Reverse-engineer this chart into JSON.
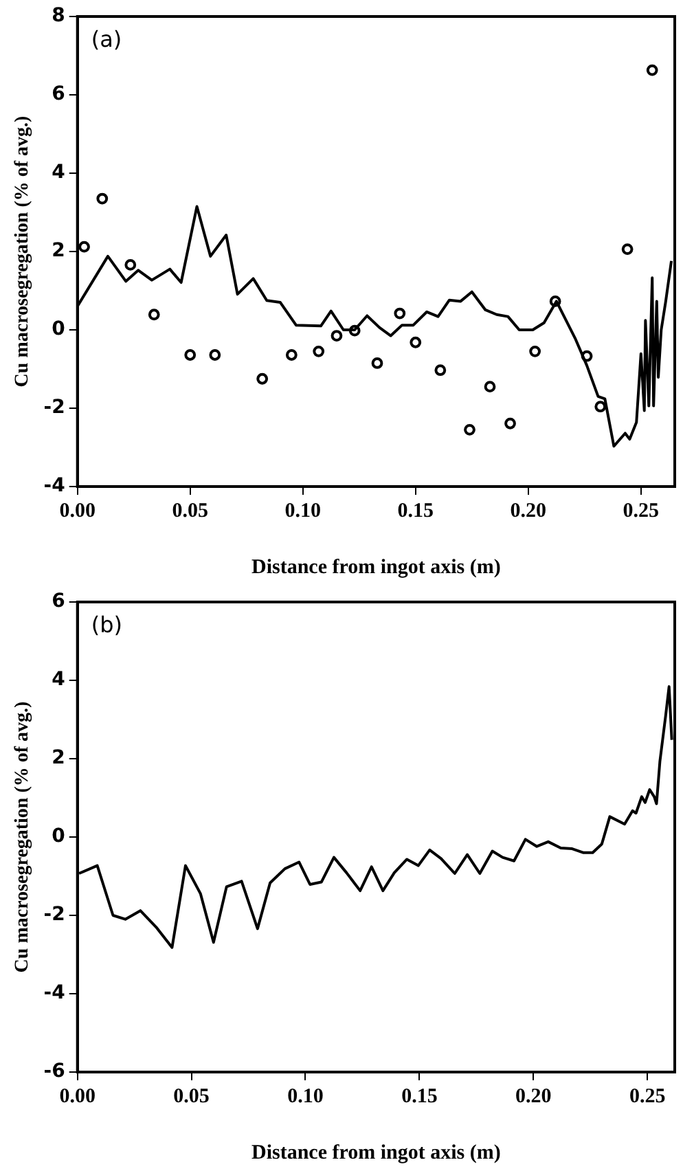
{
  "chart_data": [
    {
      "type": "line",
      "annotations": [
        "(a)"
      ],
      "xlabel": "Distance from ingot axis (m)",
      "ylabel": "Cu macrosegregation (% of avg.)",
      "grid": false,
      "legend": false,
      "xlim": [
        0,
        0.265
      ],
      "xticks": [
        {
          "value": 0,
          "label": "0.00"
        },
        0.05,
        {
          "value": 0.1,
          "label": "0.10"
        },
        0.15,
        {
          "value": 0.2,
          "label": "0.20"
        },
        0.25
      ],
      "ylim": [
        -4,
        8
      ],
      "yticks": [
        -4,
        -2,
        0,
        2,
        4,
        6,
        8
      ],
      "series": [
        {
          "color": "#000000",
          "marker": "none",
          "line_style": "solid",
          "x": [
            0.0,
            0.0135,
            0.0215,
            0.027,
            0.033,
            0.041,
            0.046,
            0.053,
            0.059,
            0.066,
            0.071,
            0.078,
            0.084,
            0.09,
            0.097,
            0.108,
            0.1125,
            0.118,
            0.123,
            0.1285,
            0.134,
            0.139,
            0.144,
            0.149,
            0.155,
            0.16,
            0.165,
            0.17,
            0.175,
            0.181,
            0.186,
            0.191,
            0.196,
            0.202,
            0.207,
            0.2125,
            0.221,
            0.226,
            0.231,
            0.234,
            0.238,
            0.243,
            0.245,
            0.248,
            0.25,
            0.2515,
            0.252,
            0.2535,
            0.255,
            0.2556,
            0.257,
            0.2577,
            0.259,
            0.261,
            0.2635
          ],
          "values": [
            0.6,
            1.88,
            1.24,
            1.52,
            1.27,
            1.55,
            1.21,
            3.15,
            1.88,
            2.42,
            0.91,
            1.31,
            0.75,
            0.7,
            0.12,
            0.1,
            0.48,
            0.0,
            0.0,
            0.36,
            0.06,
            -0.15,
            0.12,
            0.12,
            0.46,
            0.34,
            0.76,
            0.73,
            0.97,
            0.51,
            0.39,
            0.34,
            0.0,
            0.0,
            0.18,
            0.73,
            -0.24,
            -0.91,
            -1.7,
            -1.76,
            -2.97,
            -2.64,
            -2.79,
            -2.36,
            -0.61,
            -2.06,
            0.24,
            -1.94,
            1.33,
            -1.94,
            0.73,
            -1.21,
            0.0,
            0.73,
            1.76
          ]
        },
        {
          "type": "scatter",
          "color": "#000000",
          "marker": "circle",
          "x": [
            0.003,
            0.011,
            0.0235,
            0.034,
            0.05,
            0.061,
            0.082,
            0.095,
            0.107,
            0.115,
            0.123,
            0.133,
            0.143,
            0.15,
            0.161,
            0.174,
            0.183,
            0.192,
            0.203,
            0.212,
            0.226,
            0.232,
            0.244,
            0.255
          ],
          "values": [
            2.12,
            3.35,
            1.66,
            0.39,
            -0.64,
            -0.64,
            -1.25,
            -0.64,
            -0.55,
            -0.15,
            -0.02,
            -0.85,
            0.42,
            -0.32,
            -1.03,
            -2.55,
            -1.45,
            -2.39,
            -0.55,
            0.73,
            -0.67,
            -1.96,
            2.06,
            6.63
          ]
        }
      ]
    },
    {
      "type": "line",
      "annotations": [
        "(b)"
      ],
      "xlabel": "Distance from ingot axis (m)",
      "ylabel": "Cu macrosegregation (% of avg.)",
      "grid": false,
      "legend": false,
      "xlim": [
        0,
        0.262
      ],
      "xticks": [
        {
          "value": 0,
          "label": "0.00"
        },
        0.05,
        {
          "value": 0.1,
          "label": "0.10"
        },
        0.15,
        {
          "value": 0.2,
          "label": "0.20"
        },
        0.25
      ],
      "ylim": [
        -6,
        6
      ],
      "yticks": [
        -6,
        -4,
        -2,
        0,
        2,
        4,
        6
      ],
      "series": [
        {
          "color": "#000000",
          "marker": "none",
          "line_style": "solid",
          "x": [
            0.0007,
            0.0087,
            0.0156,
            0.021,
            0.0276,
            0.0345,
            0.0415,
            0.0474,
            0.054,
            0.0597,
            0.0654,
            0.072,
            0.079,
            0.0845,
            0.091,
            0.0972,
            0.102,
            0.107,
            0.1125,
            0.118,
            0.124,
            0.129,
            0.134,
            0.139,
            0.1445,
            0.1495,
            0.1545,
            0.1595,
            0.1655,
            0.171,
            0.1765,
            0.182,
            0.1865,
            0.1915,
            0.1965,
            0.2015,
            0.2065,
            0.212,
            0.217,
            0.222,
            0.226,
            0.23,
            0.2335,
            0.24,
            0.2435,
            0.245,
            0.2475,
            0.249,
            0.251,
            0.253,
            0.254,
            0.2555,
            0.258,
            0.2595,
            0.2607
          ],
          "values": [
            -0.93,
            -0.73,
            -2.0,
            -2.1,
            -1.88,
            -2.3,
            -2.82,
            -0.73,
            -1.45,
            -2.69,
            -1.27,
            -1.13,
            -2.34,
            -1.17,
            -0.81,
            -0.64,
            -1.21,
            -1.15,
            -0.52,
            -0.91,
            -1.37,
            -0.76,
            -1.37,
            -0.91,
            -0.57,
            -0.73,
            -0.33,
            -0.55,
            -0.93,
            -0.45,
            -0.93,
            -0.36,
            -0.52,
            -0.61,
            -0.06,
            -0.24,
            -0.12,
            -0.28,
            -0.3,
            -0.4,
            -0.4,
            -0.18,
            0.52,
            0.33,
            0.67,
            0.61,
            1.03,
            0.88,
            1.21,
            1.03,
            0.85,
            1.94,
            3.09,
            3.84,
            2.48
          ]
        }
      ]
    }
  ]
}
